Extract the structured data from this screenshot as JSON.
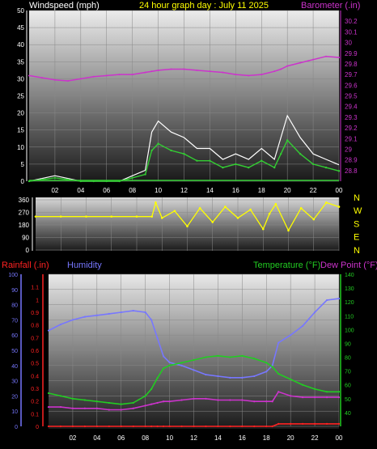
{
  "header": {
    "title": "24 hour graph day : July 11 2025",
    "windspeed_label": "Windspeed (mph)",
    "barometer_label": "Barometer (.in)"
  },
  "legend": {
    "rainfall_label": "Rainfall (.in)",
    "humidity_label": "Humidity",
    "temperature_label": "Temperature (°F)",
    "dewpoint_label": "Dew Point (°F)"
  },
  "colors": {
    "title": "#ffff00",
    "barometer": "#cc33cc",
    "wind": "#ffffff",
    "wind_avg": "#33cc33",
    "direction": "#ffff00",
    "humidity": "#7777ff",
    "temperature": "#22cc22",
    "dewpoint": "#cc33cc",
    "rainfall": "#ff2222"
  },
  "chart_data": [
    {
      "type": "line",
      "panel": "wind-barometer",
      "xlabel": "",
      "x_ticks": [
        "02",
        "04",
        "06",
        "08",
        "10",
        "12",
        "14",
        "16",
        "18",
        "20",
        "22",
        "00"
      ],
      "ylabel": "Windspeed (mph)",
      "ylim": [
        0,
        50
      ],
      "y_ticks": [
        "0",
        "5",
        "10",
        "15",
        "20",
        "25",
        "30",
        "35",
        "40",
        "45",
        "50"
      ],
      "y2label": "Barometer (.in)",
      "y2lim": [
        28.7,
        30.3
      ],
      "y2_ticks": [
        "28.8",
        "28.9",
        "29",
        "29.1",
        "29.2",
        "29.3",
        "29.4",
        "29.5",
        "29.6",
        "29.7",
        "29.8",
        "29.9",
        "30",
        "30.1",
        "30.2"
      ],
      "hours": [
        0,
        1,
        2,
        3,
        4,
        5,
        6,
        7,
        8,
        9,
        9.5,
        10,
        11,
        12,
        13,
        14,
        15,
        16,
        17,
        18,
        19,
        19.5,
        20,
        21,
        22,
        23,
        24
      ],
      "series": [
        {
          "name": "Windspeed (mph)",
          "axis": "left",
          "values": [
            0,
            0.5,
            1,
            0.5,
            0,
            0,
            0,
            0,
            1,
            2,
            9,
            11,
            9,
            8,
            6,
            6,
            4,
            5,
            4,
            6,
            4,
            8,
            12,
            8,
            5,
            4,
            3
          ]
        },
        {
          "name": "Barometer (.in)",
          "axis": "right",
          "values": [
            29.69,
            29.67,
            29.65,
            29.64,
            29.66,
            29.68,
            29.69,
            29.7,
            29.7,
            29.72,
            29.73,
            29.74,
            29.75,
            29.75,
            29.74,
            29.73,
            29.72,
            29.7,
            29.69,
            29.7,
            29.73,
            29.75,
            29.78,
            29.81,
            29.84,
            29.87,
            29.86
          ]
        }
      ]
    },
    {
      "type": "line",
      "panel": "wind-direction",
      "ylim": [
        0,
        360
      ],
      "y_ticks": [
        "0",
        "90",
        "180",
        "270",
        "360"
      ],
      "compass": [
        "N",
        "W",
        "S",
        "E",
        "N"
      ],
      "hours": [
        0,
        2,
        4,
        6,
        8,
        9.2,
        9.5,
        10,
        11,
        12,
        13,
        14,
        15,
        16,
        17,
        18,
        18.5,
        19,
        20,
        21,
        22,
        23,
        24
      ],
      "values": [
        240,
        240,
        240,
        240,
        240,
        240,
        340,
        230,
        280,
        170,
        300,
        200,
        310,
        230,
        290,
        150,
        260,
        330,
        140,
        300,
        220,
        340,
        310
      ]
    },
    {
      "type": "line",
      "panel": "temperature-humidity",
      "hours": [
        0,
        1,
        2,
        3,
        4,
        5,
        6,
        7,
        8,
        8.5,
        9,
        9.5,
        10,
        11,
        12,
        13,
        14,
        15,
        16,
        17,
        18,
        18.5,
        19,
        20,
        21,
        22,
        23,
        24
      ],
      "ylim": [
        0,
        100
      ],
      "y_ticks": [
        "0",
        "10",
        "20",
        "30",
        "40",
        "50",
        "60",
        "70",
        "80",
        "90",
        "100"
      ],
      "rain_ylim": [
        0,
        1.2
      ],
      "rain_ticks": [
        "0",
        "0.1",
        "0.2",
        "0.3",
        "0.4",
        "0.5",
        "0.6",
        "0.7",
        "0.8",
        "0.9",
        "1",
        "1.1"
      ],
      "temp_ylim": [
        30,
        140
      ],
      "temp_ticks": [
        "40",
        "50",
        "60",
        "70",
        "80",
        "90",
        "100",
        "110",
        "120",
        "130",
        "140"
      ],
      "series": [
        {
          "name": "Humidity",
          "axis": "left",
          "values": [
            63,
            67,
            70,
            72,
            73,
            74,
            75,
            76,
            75,
            70,
            58,
            46,
            42,
            40,
            37,
            34,
            33,
            32,
            32,
            33,
            36,
            40,
            55,
            60,
            66,
            75,
            83,
            84
          ]
        },
        {
          "name": "Temperature (°F)",
          "axis": "temp",
          "values": [
            54,
            52,
            50,
            49,
            48,
            47,
            46,
            47,
            52,
            57,
            65,
            72,
            74,
            76,
            78,
            80,
            81,
            80,
            81,
            79,
            76,
            73,
            68,
            64,
            60,
            57,
            55,
            55
          ]
        },
        {
          "name": "Dew Point (°F)",
          "axis": "temp",
          "values": [
            44,
            44,
            43,
            43,
            43,
            42,
            42,
            43,
            45,
            46,
            47,
            48,
            48,
            49,
            50,
            50,
            49,
            49,
            49,
            48,
            48,
            48,
            55,
            52,
            51,
            51,
            51,
            51
          ]
        },
        {
          "name": "Rainfall (.in)",
          "axis": "rain",
          "values": [
            0,
            0,
            0,
            0,
            0,
            0,
            0,
            0,
            0,
            0,
            0,
            0,
            0,
            0,
            0,
            0,
            0,
            0,
            0,
            0,
            0,
            0,
            0.02,
            0.02,
            0.02,
            0.02,
            0.02,
            0.02
          ]
        }
      ]
    }
  ]
}
